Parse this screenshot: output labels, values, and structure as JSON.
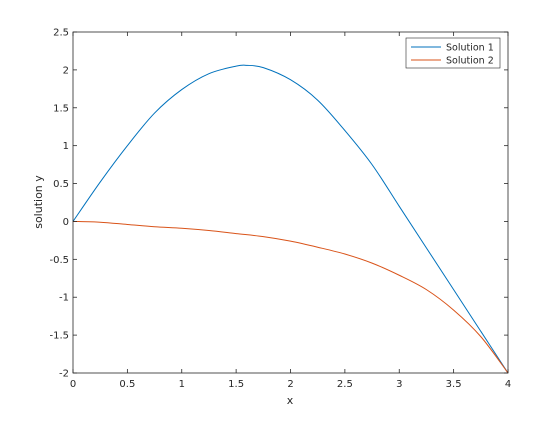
{
  "chart_data": {
    "type": "line",
    "title": "",
    "xlabel": "x",
    "ylabel": "solution y",
    "xlim": [
      0,
      4
    ],
    "ylim": [
      -2,
      2.5
    ],
    "xticks": [
      "0",
      "0.5",
      "1",
      "1.5",
      "2",
      "2.5",
      "3",
      "3.5",
      "4"
    ],
    "xtick_values": [
      0,
      0.5,
      1,
      1.5,
      2,
      2.5,
      3,
      3.5,
      4
    ],
    "yticks": [
      "2.5",
      "2",
      "1.5",
      "1",
      "0.5",
      "0",
      "-0.5",
      "-1",
      "-1.5",
      "-2"
    ],
    "ytick_values": [
      2.5,
      2,
      1.5,
      1,
      0.5,
      0,
      -0.5,
      -1,
      -1.5,
      -2
    ],
    "grid": false,
    "legend_position": "top-right",
    "series": [
      {
        "name": "Solution 1",
        "color": "#0072bd",
        "x": [
          0,
          0.25,
          0.5,
          0.75,
          1.0,
          1.25,
          1.5,
          1.6,
          1.75,
          2.0,
          2.25,
          2.5,
          2.75,
          3.0,
          3.25,
          3.5,
          3.75,
          4.0
        ],
        "y": [
          0,
          0.52,
          1.0,
          1.43,
          1.74,
          1.95,
          2.05,
          2.06,
          2.03,
          1.87,
          1.6,
          1.2,
          0.75,
          0.2,
          -0.35,
          -0.9,
          -1.45,
          -2.0
        ]
      },
      {
        "name": "Solution 2",
        "color": "#d95319",
        "x": [
          0,
          0.25,
          0.5,
          0.75,
          1.0,
          1.25,
          1.5,
          1.75,
          2.0,
          2.25,
          2.5,
          2.75,
          3.0,
          3.25,
          3.5,
          3.75,
          4.0
        ],
        "y": [
          0,
          -0.01,
          -0.04,
          -0.07,
          -0.09,
          -0.12,
          -0.16,
          -0.2,
          -0.26,
          -0.34,
          -0.43,
          -0.55,
          -0.71,
          -0.9,
          -1.17,
          -1.52,
          -2.0
        ]
      }
    ]
  }
}
